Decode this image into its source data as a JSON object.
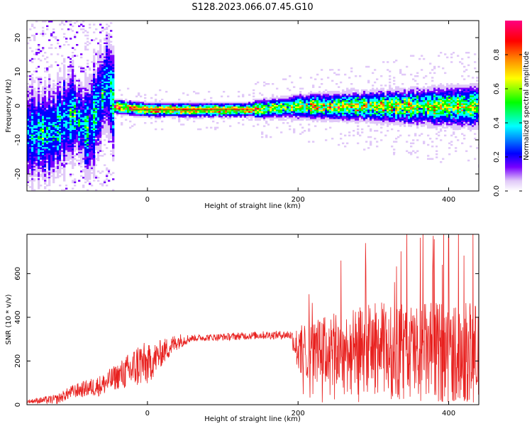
{
  "title": "S128.2023.066.07.45.G10",
  "chart_data": [
    {
      "type": "heatmap",
      "title": "S128.2023.066.07.45.G10",
      "xlabel": "Height of straight line (km)",
      "ylabel": "Frequency (Hz)",
      "xlim": [
        -160,
        440
      ],
      "ylim": [
        -25,
        25
      ],
      "xticks": [
        0,
        200,
        400
      ],
      "yticks": [
        -20,
        -10,
        0,
        10,
        20
      ],
      "colorbar": {
        "label": "Normalized spectral amplitude",
        "range": [
          0,
          1
        ],
        "ticks": [
          "0.0",
          "0.2",
          "0.4",
          "0.6",
          "0.8"
        ],
        "colors": [
          "#ffffff",
          "#e0c8f8",
          "#7800ff",
          "#0000ff",
          "#00ffff",
          "#00ff00",
          "#ffff00",
          "#ff8000",
          "#ff0000",
          "#ff0080"
        ]
      },
      "ridge_frequency_hz": [
        {
          "x": -130,
          "y": -8
        },
        {
          "x": -100,
          "y": -2
        },
        {
          "x": -80,
          "y": -7
        },
        {
          "x": -62,
          "y": 3
        },
        {
          "x": -55,
          "y": 8
        },
        {
          "x": -45,
          "y": 0
        },
        {
          "x": 0,
          "y": -1
        },
        {
          "x": 130,
          "y": -1
        },
        {
          "x": 200,
          "y": 0
        },
        {
          "x": 300,
          "y": 0
        },
        {
          "x": 440,
          "y": 0
        }
      ],
      "grid": false
    },
    {
      "type": "line",
      "xlabel": "Height of straight line (km)",
      "ylabel": "SNR (10 * v/v)",
      "xlim": [
        -160,
        440
      ],
      "ylim": [
        0,
        780
      ],
      "xticks": [
        0,
        200,
        400
      ],
      "yticks": [
        0,
        200,
        400,
        600
      ],
      "color": "#e8211f",
      "series_trend": [
        {
          "x": -160,
          "y": 15
        },
        {
          "x": -120,
          "y": 25
        },
        {
          "x": -100,
          "y": 60
        },
        {
          "x": -60,
          "y": 90
        },
        {
          "x": -40,
          "y": 130
        },
        {
          "x": -20,
          "y": 160
        },
        {
          "x": -10,
          "y": 190
        },
        {
          "x": 0,
          "y": 180
        },
        {
          "x": 20,
          "y": 240
        },
        {
          "x": 40,
          "y": 290
        },
        {
          "x": 60,
          "y": 305
        },
        {
          "x": 100,
          "y": 310
        },
        {
          "x": 150,
          "y": 318
        },
        {
          "x": 190,
          "y": 320
        },
        {
          "x": 200,
          "y": 250
        },
        {
          "x": 260,
          "y": 240
        },
        {
          "x": 300,
          "y": 260
        },
        {
          "x": 360,
          "y": 240
        },
        {
          "x": 440,
          "y": 240
        }
      ],
      "series_spread": [
        {
          "x": -160,
          "y": 8
        },
        {
          "x": -100,
          "y": 30
        },
        {
          "x": -40,
          "y": 60
        },
        {
          "x": -10,
          "y": 110
        },
        {
          "x": 20,
          "y": 60
        },
        {
          "x": 60,
          "y": 15
        },
        {
          "x": 190,
          "y": 20
        },
        {
          "x": 200,
          "y": 110
        },
        {
          "x": 240,
          "y": 170
        },
        {
          "x": 300,
          "y": 210
        },
        {
          "x": 360,
          "y": 230
        },
        {
          "x": 440,
          "y": 230
        }
      ],
      "peak": {
        "x": 400,
        "y": 770
      },
      "grid": false
    }
  ]
}
